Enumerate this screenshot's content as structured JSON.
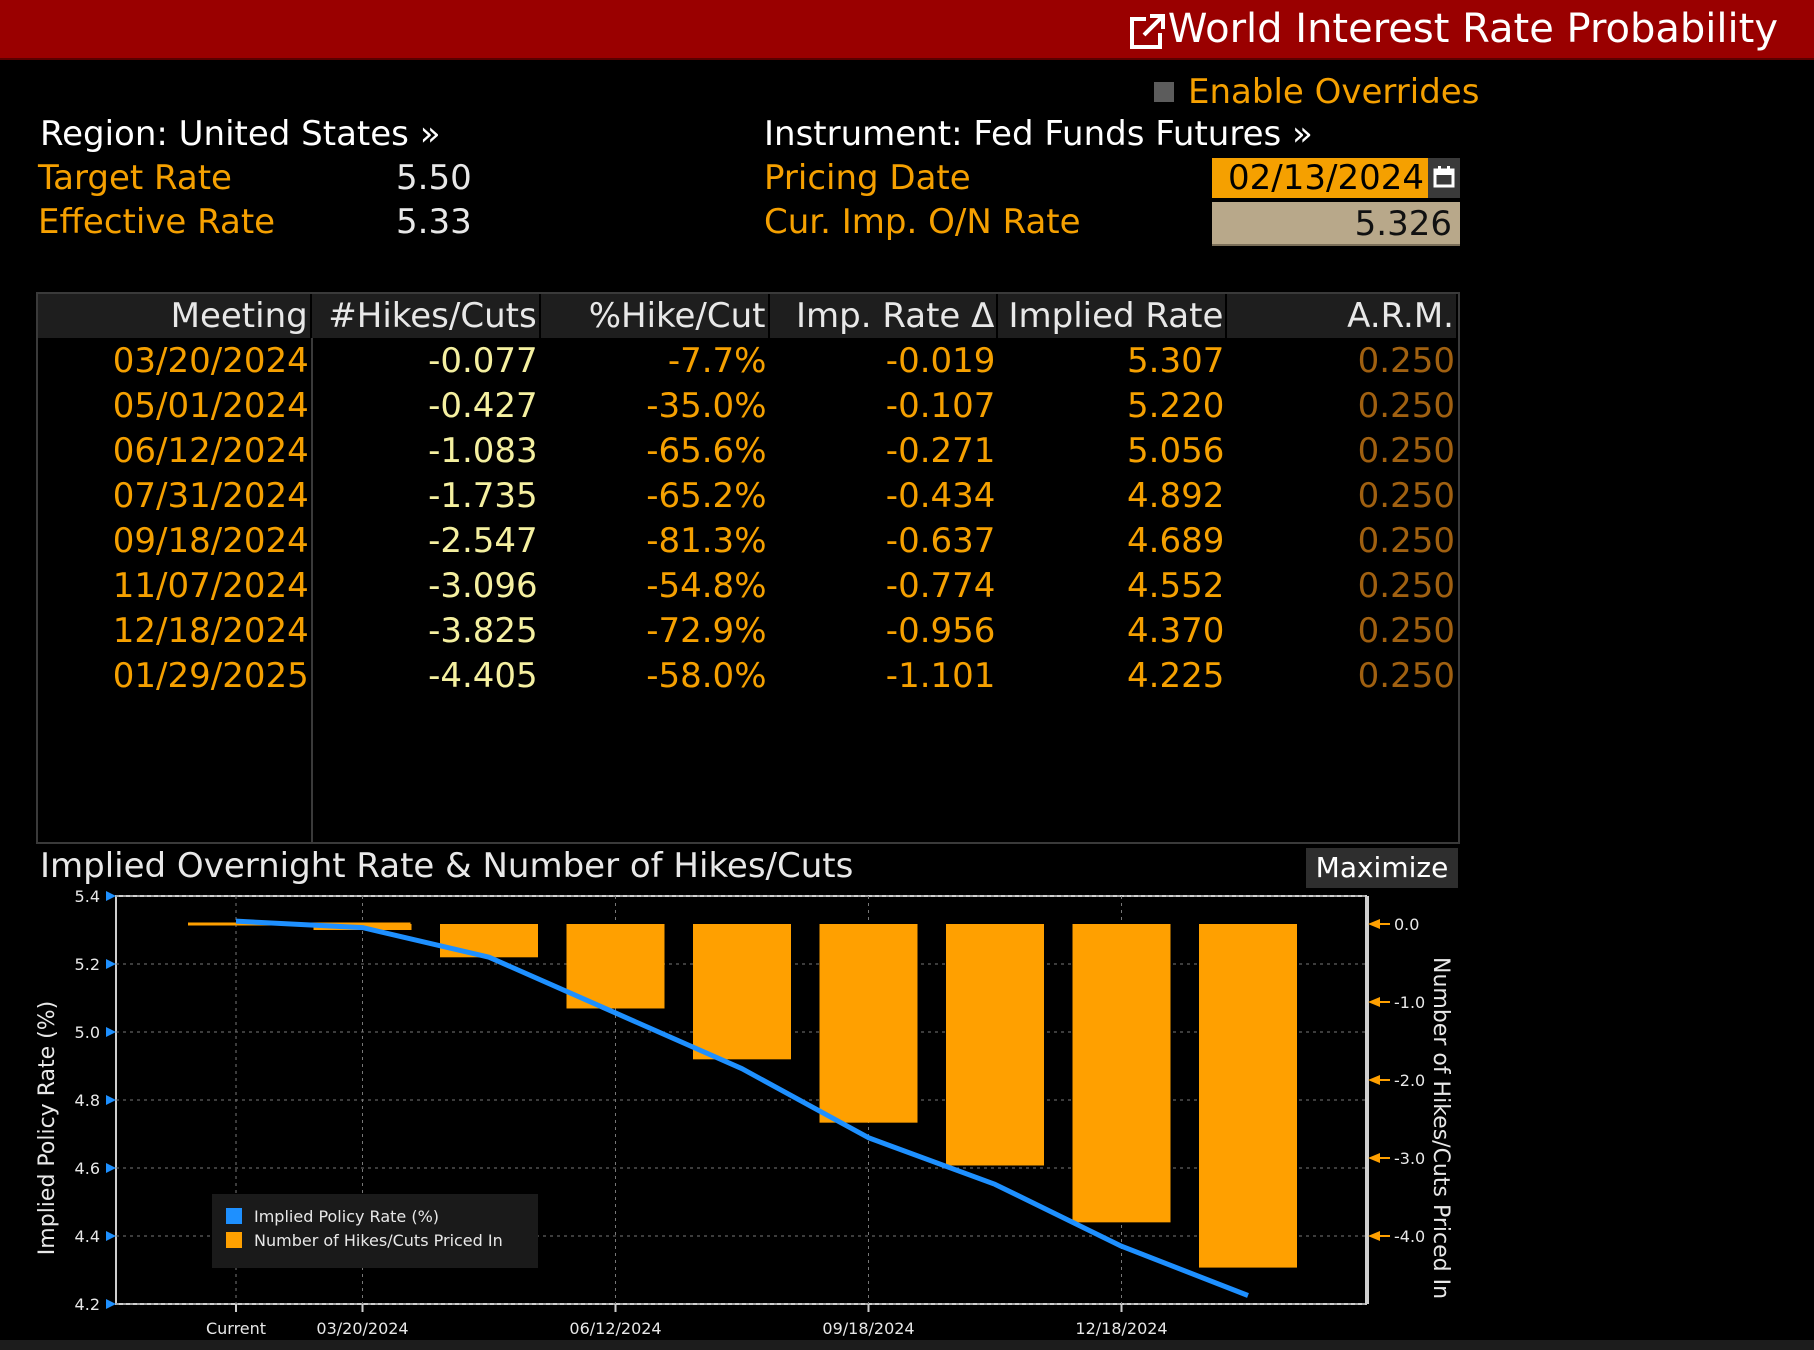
{
  "window": {
    "title": "World Interest Rate Probability",
    "icon": "popout-icon"
  },
  "overrides": {
    "label": "Enable Overrides",
    "checked": false
  },
  "header": {
    "region": "Region: United States »",
    "target_rate_label": "Target Rate",
    "target_rate_value": "5.50",
    "effective_rate_label": "Effective Rate",
    "effective_rate_value": "5.33",
    "instrument": "Instrument: Fed Funds Futures »",
    "pricing_date_label": "Pricing Date",
    "pricing_date_value": "02/13/2024",
    "cur_imp_label": "Cur. Imp. O/N Rate",
    "cur_imp_value": "5.326"
  },
  "table": {
    "columns": [
      "Meeting",
      "#Hikes/Cuts",
      "%Hike/Cut",
      "Imp. Rate Δ",
      "Implied Rate",
      "A.R.M."
    ],
    "rows": [
      [
        "03/20/2024",
        "-0.077",
        "-7.7%",
        "-0.019",
        "5.307",
        "0.250"
      ],
      [
        "05/01/2024",
        "-0.427",
        "-35.0%",
        "-0.107",
        "5.220",
        "0.250"
      ],
      [
        "06/12/2024",
        "-1.083",
        "-65.6%",
        "-0.271",
        "5.056",
        "0.250"
      ],
      [
        "07/31/2024",
        "-1.735",
        "-65.2%",
        "-0.434",
        "4.892",
        "0.250"
      ],
      [
        "09/18/2024",
        "-2.547",
        "-81.3%",
        "-0.637",
        "4.689",
        "0.250"
      ],
      [
        "11/07/2024",
        "-3.096",
        "-54.8%",
        "-0.774",
        "4.552",
        "0.250"
      ],
      [
        "12/18/2024",
        "-3.825",
        "-72.9%",
        "-0.956",
        "4.370",
        "0.250"
      ],
      [
        "01/29/2025",
        "-4.405",
        "-58.0%",
        "-1.101",
        "4.225",
        "0.250"
      ]
    ]
  },
  "chart": {
    "title": "Implied Overnight Rate & Number of Hikes/Cuts",
    "maximize_label": "Maximize"
  },
  "colors": {
    "titlebar": "#9a0000",
    "accent": "#f5a000",
    "line": "#1e90ff",
    "bars": "#ffa000"
  },
  "chart_data": {
    "type": "bar",
    "title": "Implied Overnight Rate & Number of Hikes/Cuts",
    "categories": [
      "Current",
      "03/20/2024",
      "05/01/2024",
      "06/12/2024",
      "07/31/2024",
      "09/18/2024",
      "11/07/2024",
      "12/18/2024",
      "01/29/2025"
    ],
    "x_tick_labels": [
      "Current",
      "03/20/2024",
      "06/12/2024",
      "09/18/2024",
      "12/18/2024"
    ],
    "series": [
      {
        "name": "Implied Policy Rate (%)",
        "type": "line",
        "axis": "left",
        "values": [
          5.326,
          5.307,
          5.22,
          5.056,
          4.892,
          4.689,
          4.552,
          4.37,
          4.225
        ]
      },
      {
        "name": "Number of Hikes/Cuts Priced In",
        "type": "bar",
        "axis": "right",
        "values": [
          null,
          -0.077,
          -0.427,
          -1.083,
          -1.735,
          -2.547,
          -3.096,
          -3.825,
          -4.405
        ]
      }
    ],
    "ylabel": "Implied Policy Rate (%)",
    "y2label": "Number of Hikes/Cuts Priced In",
    "ylim": [
      4.2,
      5.4
    ],
    "y_ticks": [
      "5.4",
      "5.2",
      "5.0",
      "4.8",
      "4.6",
      "4.4",
      "4.2"
    ],
    "y2lim": [
      -4.4,
      0.0
    ],
    "y2_ticks": [
      "0.0",
      "-1.0",
      "-2.0",
      "-3.0",
      "-4.0"
    ],
    "grid": true,
    "legend_position": "bottom-left"
  }
}
